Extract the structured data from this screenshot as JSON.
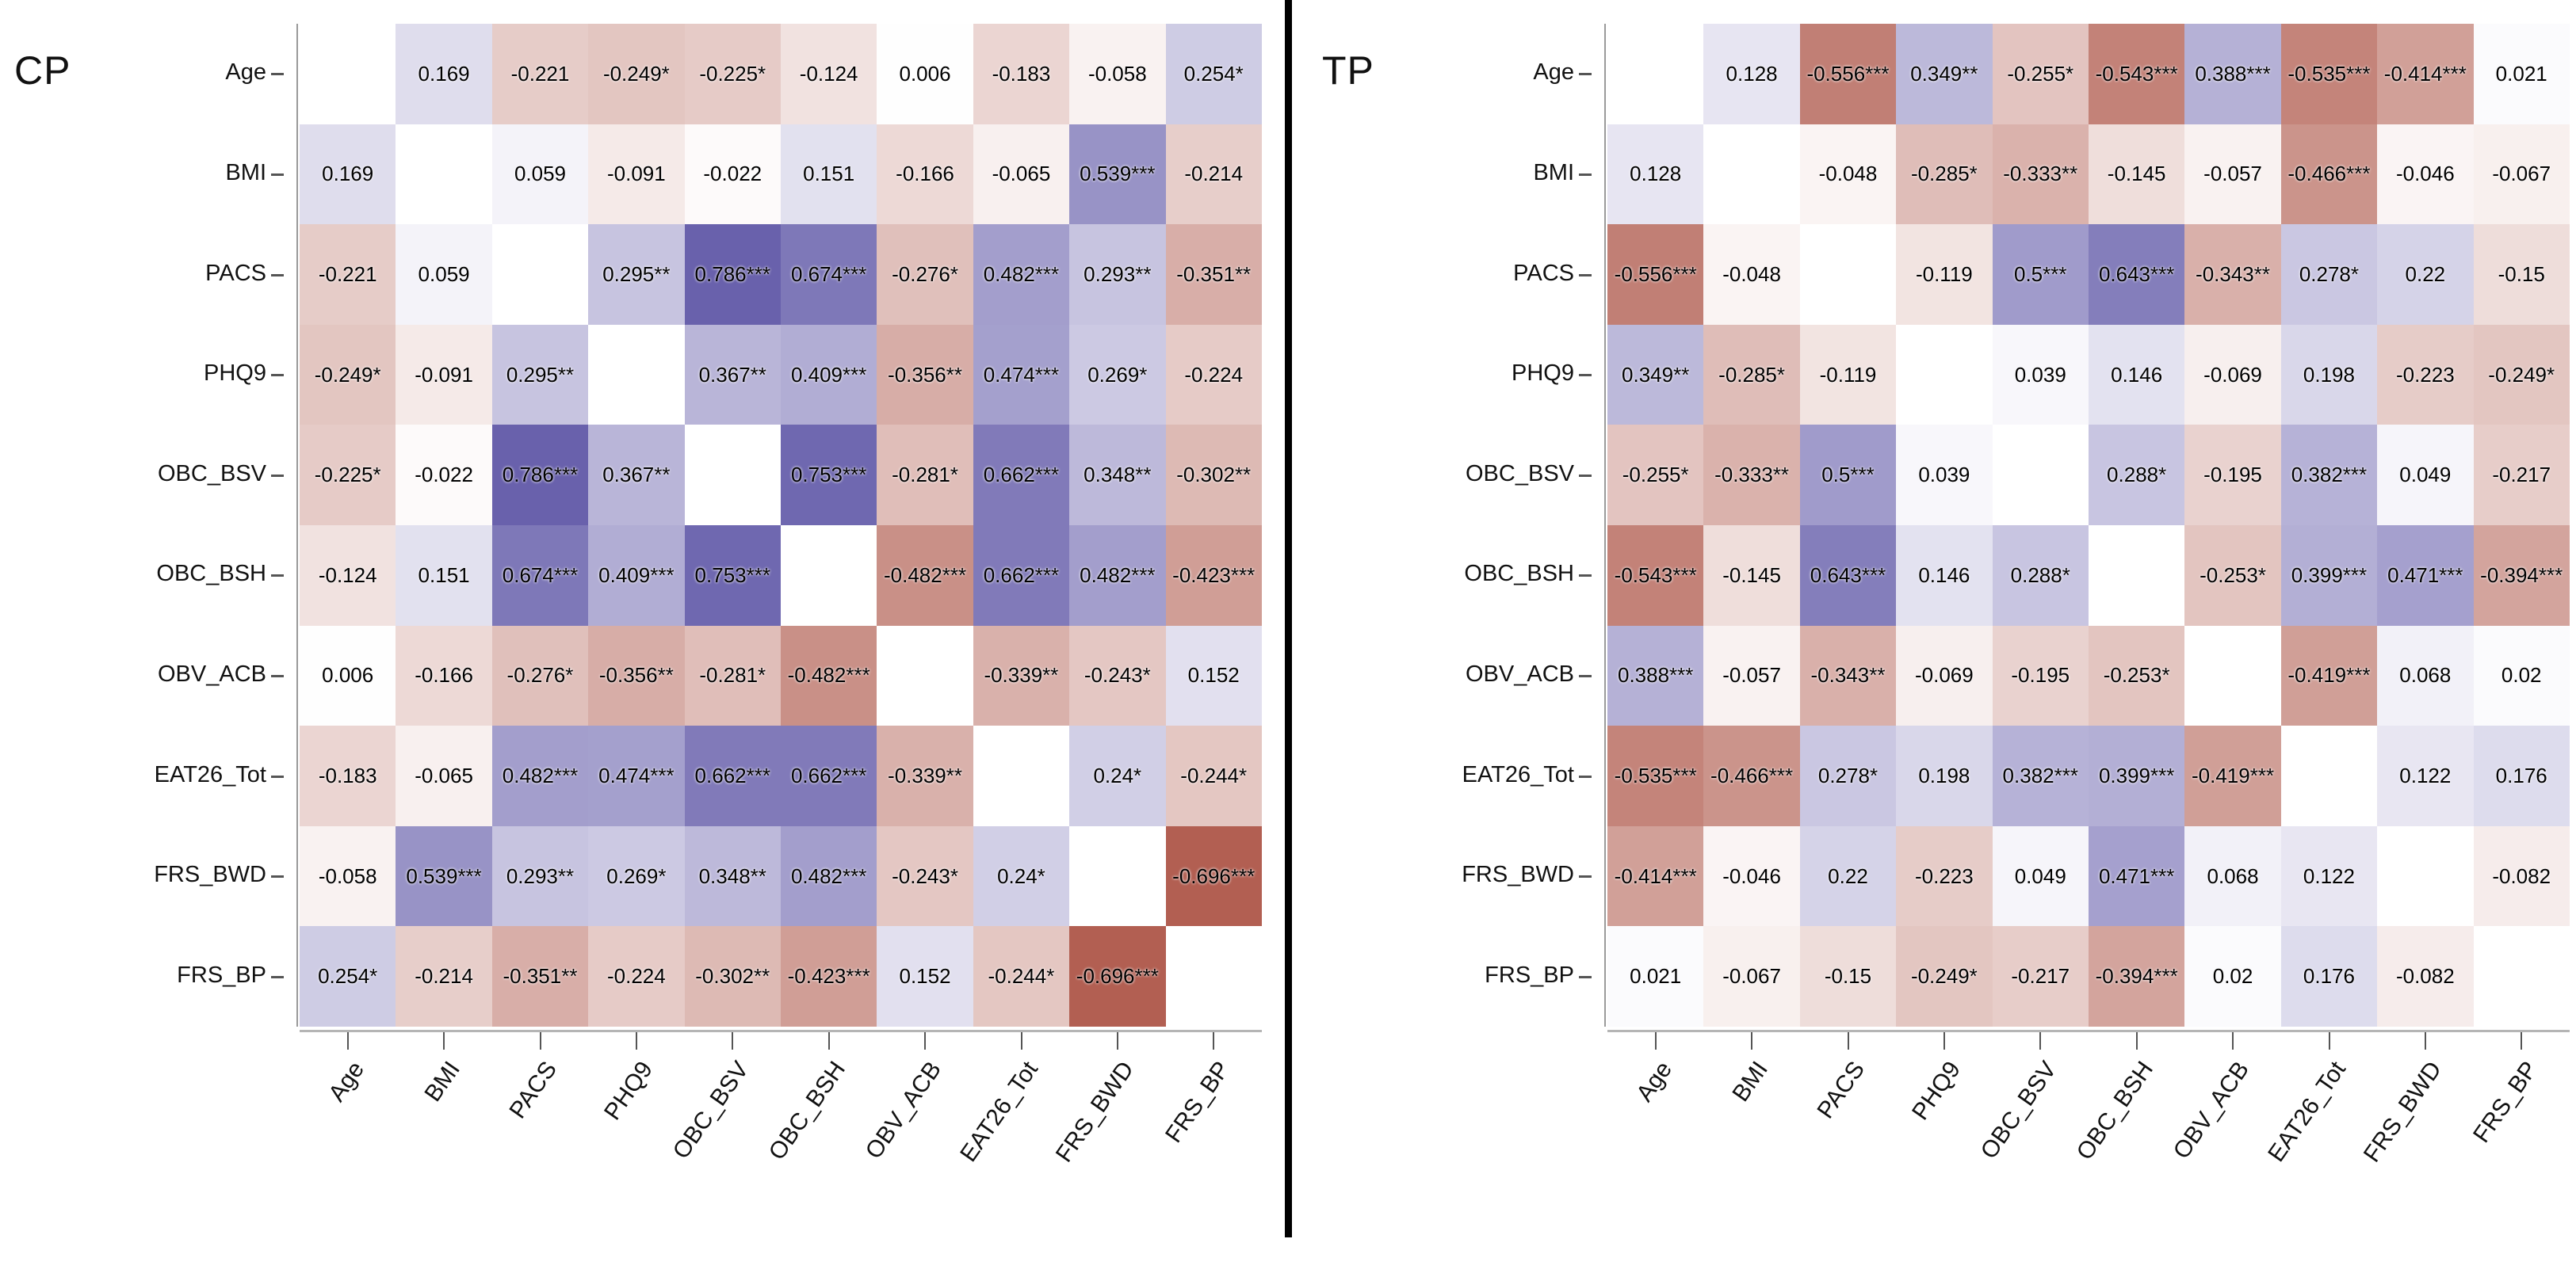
{
  "colors": {
    "positive_end": "#403696",
    "negative_end": "#901907",
    "diagonal": "#ffffff",
    "cell_text": "#000000",
    "divider": "#000000"
  },
  "chart_data": [
    {
      "type": "heatmap",
      "title": "CP",
      "legend_position": "none",
      "grid": false,
      "value_range": [
        -1,
        1
      ],
      "labels": [
        "Age",
        "BMI",
        "PACS",
        "PHQ9",
        "OBC_BSV",
        "OBC_BSH",
        "OBV_ACB",
        "EAT26_Tot",
        "FRS_BWD",
        "FRS_BP"
      ],
      "cells": [
        [
          null,
          "0.169",
          "-0.221",
          "-0.249*",
          "-0.225*",
          "-0.124",
          "0.006",
          "-0.183",
          "-0.058",
          "0.254*"
        ],
        [
          "0.169",
          null,
          "0.059",
          "-0.091",
          "-0.022",
          "0.151",
          "-0.166",
          "-0.065",
          "0.539***",
          "-0.214"
        ],
        [
          "-0.221",
          "0.059",
          null,
          "0.295**",
          "0.786***",
          "0.674***",
          "-0.276*",
          "0.482***",
          "0.293**",
          "-0.351**"
        ],
        [
          "-0.249*",
          "-0.091",
          "0.295**",
          null,
          "0.367**",
          "0.409***",
          "-0.356**",
          "0.474***",
          "0.269*",
          "-0.224"
        ],
        [
          "-0.225*",
          "-0.022",
          "0.786***",
          "0.367**",
          null,
          "0.753***",
          "-0.281*",
          "0.662***",
          "0.348**",
          "-0.302**"
        ],
        [
          "-0.124",
          "0.151",
          "0.674***",
          "0.409***",
          "0.753***",
          null,
          "-0.482***",
          "0.662***",
          "0.482***",
          "-0.423***"
        ],
        [
          "0.006",
          "-0.166",
          "-0.276*",
          "-0.356**",
          "-0.281*",
          "-0.482***",
          null,
          "-0.339**",
          "-0.243*",
          "0.152"
        ],
        [
          "-0.183",
          "-0.065",
          "0.482***",
          "0.474***",
          "0.662***",
          "0.662***",
          "-0.339**",
          null,
          "0.24*",
          "-0.244*"
        ],
        [
          "-0.058",
          "0.539***",
          "0.293**",
          "0.269*",
          "0.348**",
          "0.482***",
          "-0.243*",
          "0.24*",
          null,
          "-0.696***"
        ],
        [
          "0.254*",
          "-0.214",
          "-0.351**",
          "-0.224",
          "-0.302**",
          "-0.423***",
          "0.152",
          "-0.244*",
          "-0.696***",
          null
        ]
      ]
    },
    {
      "type": "heatmap",
      "title": "TP",
      "legend_position": "none",
      "grid": false,
      "value_range": [
        -1,
        1
      ],
      "labels": [
        "Age",
        "BMI",
        "PACS",
        "PHQ9",
        "OBC_BSV",
        "OBC_BSH",
        "OBV_ACB",
        "EAT26_Tot",
        "FRS_BWD",
        "FRS_BP"
      ],
      "cells": [
        [
          null,
          "0.128",
          "-0.556***",
          "0.349**",
          "-0.255*",
          "-0.543***",
          "0.388***",
          "-0.535***",
          "-0.414***",
          "0.021"
        ],
        [
          "0.128",
          null,
          "-0.048",
          "-0.285*",
          "-0.333**",
          "-0.145",
          "-0.057",
          "-0.466***",
          "-0.046",
          "-0.067"
        ],
        [
          "-0.556***",
          "-0.048",
          null,
          "-0.119",
          "0.5***",
          "0.643***",
          "-0.343**",
          "0.278*",
          "0.22",
          "-0.15"
        ],
        [
          "0.349**",
          "-0.285*",
          "-0.119",
          null,
          "0.039",
          "0.146",
          "-0.069",
          "0.198",
          "-0.223",
          "-0.249*"
        ],
        [
          "-0.255*",
          "-0.333**",
          "0.5***",
          "0.039",
          null,
          "0.288*",
          "-0.195",
          "0.382***",
          "0.049",
          "-0.217"
        ],
        [
          "-0.543***",
          "-0.145",
          "0.643***",
          "0.146",
          "0.288*",
          null,
          "-0.253*",
          "0.399***",
          "0.471***",
          "-0.394***"
        ],
        [
          "0.388***",
          "-0.057",
          "-0.343**",
          "-0.069",
          "-0.195",
          "-0.253*",
          null,
          "-0.419***",
          "0.068",
          "0.02"
        ],
        [
          "-0.535***",
          "-0.466***",
          "0.278*",
          "0.198",
          "0.382***",
          "0.399***",
          "-0.419***",
          null,
          "0.122",
          "0.176"
        ],
        [
          "-0.414***",
          "-0.046",
          "0.22",
          "-0.223",
          "0.049",
          "0.471***",
          "0.068",
          "0.122",
          null,
          "-0.082"
        ],
        [
          "0.021",
          "-0.067",
          "-0.15",
          "-0.249*",
          "-0.217",
          "-0.394***",
          "0.02",
          "0.176",
          "-0.082",
          null
        ]
      ]
    }
  ]
}
